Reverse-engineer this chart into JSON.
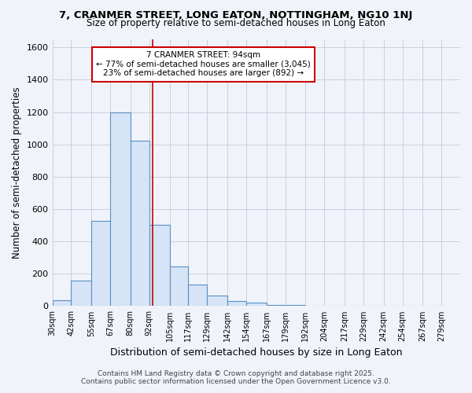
{
  "title1": "7, CRANMER STREET, LONG EATON, NOTTINGHAM, NG10 1NJ",
  "title2": "Size of property relative to semi-detached houses in Long Eaton",
  "xlabel": "Distribution of semi-detached houses by size in Long Eaton",
  "ylabel": "Number of semi-detached properties",
  "bin_labels": [
    "30sqm",
    "42sqm",
    "55sqm",
    "67sqm",
    "80sqm",
    "92sqm",
    "105sqm",
    "117sqm",
    "129sqm",
    "142sqm",
    "154sqm",
    "167sqm",
    "179sqm",
    "192sqm",
    "204sqm",
    "217sqm",
    "229sqm",
    "242sqm",
    "254sqm",
    "267sqm",
    "279sqm"
  ],
  "bin_edges": [
    30,
    42,
    55,
    67,
    80,
    92,
    105,
    117,
    129,
    142,
    154,
    167,
    179,
    192,
    204,
    217,
    229,
    242,
    254,
    267,
    279
  ],
  "counts": [
    35,
    160,
    525,
    1200,
    1025,
    505,
    245,
    135,
    65,
    30,
    20,
    5,
    5,
    0,
    0,
    0,
    0,
    0,
    0,
    0
  ],
  "bar_facecolor": "#d6e4f7",
  "bar_edgecolor": "#5a8fc2",
  "property_line_x": 94,
  "property_line_color": "#cc0000",
  "annotation_title": "7 CRANMER STREET: 94sqm",
  "annotation_line1": "← 77% of semi-detached houses are smaller (3,045)",
  "annotation_line2": "23% of semi-detached houses are larger (892) →",
  "annotation_box_edgecolor": "#cc0000",
  "ylim": [
    0,
    1650
  ],
  "yticks": [
    0,
    200,
    400,
    600,
    800,
    1000,
    1200,
    1400,
    1600
  ],
  "background_color": "#f0f4fa",
  "grid_color": "#c8d0e0",
  "footer1": "Contains HM Land Registry data © Crown copyright and database right 2025.",
  "footer2": "Contains public sector information licensed under the Open Government Licence v3.0."
}
